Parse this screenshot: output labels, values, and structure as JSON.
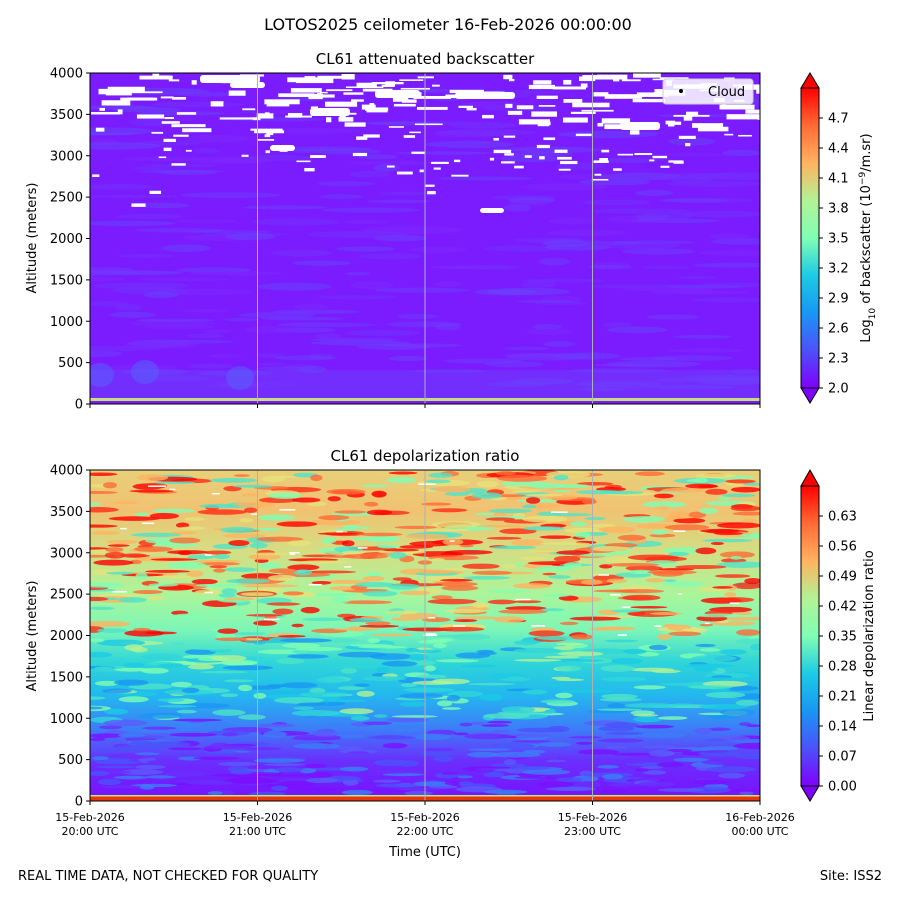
{
  "figure": {
    "suptitle": "LOTOS2025 ceilometer 16-Feb-2026 00:00:00",
    "footer_left": "REAL TIME DATA, NOT CHECKED FOR QUALITY",
    "footer_right": "Site: ISS2",
    "xlabel": "Time (UTC)",
    "x_ticks": [
      {
        "date": "15-Feb-2026",
        "time": "20:00 UTC"
      },
      {
        "date": "15-Feb-2026",
        "time": "21:00 UTC"
      },
      {
        "date": "15-Feb-2026",
        "time": "22:00 UTC"
      },
      {
        "date": "15-Feb-2026",
        "time": "23:00 UTC"
      },
      {
        "date": "16-Feb-2026",
        "time": "00:00 UTC"
      }
    ]
  },
  "chart_data": [
    {
      "type": "heatmap",
      "title": "CL61 attenuated backscatter",
      "ylabel": "Altitude (meters)",
      "xlabel": "",
      "x_range": [
        "2026-02-15T20:00Z",
        "2026-02-16T00:00Z"
      ],
      "ylim": [
        0,
        4000
      ],
      "y_ticks": [
        0,
        500,
        1000,
        1500,
        2000,
        2500,
        3000,
        3500,
        4000
      ],
      "colorbar": {
        "label_html": "Log<tspan baseline-shift='sub' font-size='9'>10</tspan> of backscatter (10<tspan baseline-shift='super' font-size='9'>−9</tspan>/m.sr)",
        "label_plain": "Log10 of backscatter (10−9/m.sr)",
        "min": 2.0,
        "max": 5.0,
        "extend": "both",
        "colormap": "rainbow",
        "ticks": [
          "2.0",
          "2.3",
          "2.6",
          "2.9",
          "3.2",
          "3.5",
          "3.8",
          "4.1",
          "4.4",
          "4.7"
        ]
      },
      "legend": {
        "label": "Cloud",
        "location": "upper right"
      },
      "cloud_band_altitude_m": [
        2300,
        4000
      ],
      "grid": "vertical lines at x ticks"
    },
    {
      "type": "heatmap",
      "title": "CL61 depolarization ratio",
      "ylabel": "Altitude (meters)",
      "xlabel": "Time (UTC)",
      "x_range": [
        "2026-02-15T20:00Z",
        "2026-02-16T00:00Z"
      ],
      "ylim": [
        0,
        4000
      ],
      "y_ticks": [
        0,
        500,
        1000,
        1500,
        2000,
        2500,
        3000,
        3500,
        4000
      ],
      "colorbar": {
        "label": "Linear depolarization ratio",
        "min": 0.0,
        "max": 0.7,
        "extend": "both",
        "colormap": "rainbow",
        "ticks": [
          "0.00",
          "0.07",
          "0.14",
          "0.21",
          "0.28",
          "0.35",
          "0.42",
          "0.49",
          "0.56",
          "0.63"
        ]
      },
      "grid": "vertical lines at x ticks"
    }
  ]
}
